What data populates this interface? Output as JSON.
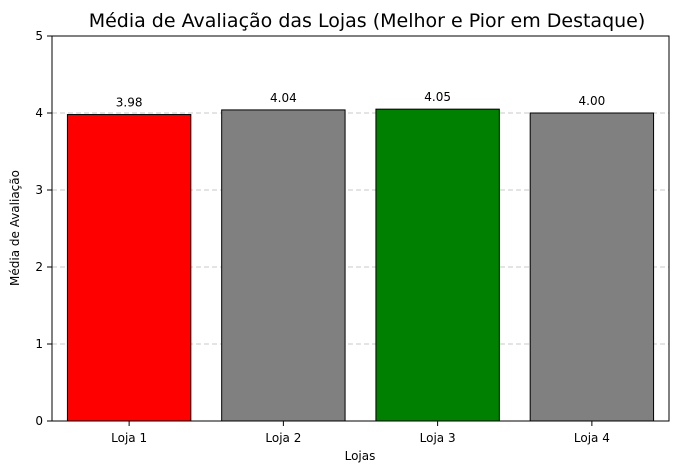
{
  "chart_data": {
    "type": "bar",
    "title": "Média de Avaliação das Lojas (Melhor e Pior em Destaque)",
    "xlabel": "Lojas",
    "ylabel": "Média de Avaliação",
    "categories": [
      "Loja 1",
      "Loja 2",
      "Loja 3",
      "Loja 4"
    ],
    "values": [
      3.98,
      4.04,
      4.05,
      4.0
    ],
    "value_labels": [
      "3.98",
      "4.04",
      "4.05",
      "4.00"
    ],
    "colors": [
      "#ff0000",
      "#808080",
      "#008000",
      "#808080"
    ],
    "ylim": [
      0,
      5
    ],
    "yticks": [
      0,
      1,
      2,
      3,
      4,
      5
    ],
    "ytick_labels": [
      "0",
      "1",
      "2",
      "3",
      "4",
      "5"
    ],
    "grid": "y-dashed"
  }
}
